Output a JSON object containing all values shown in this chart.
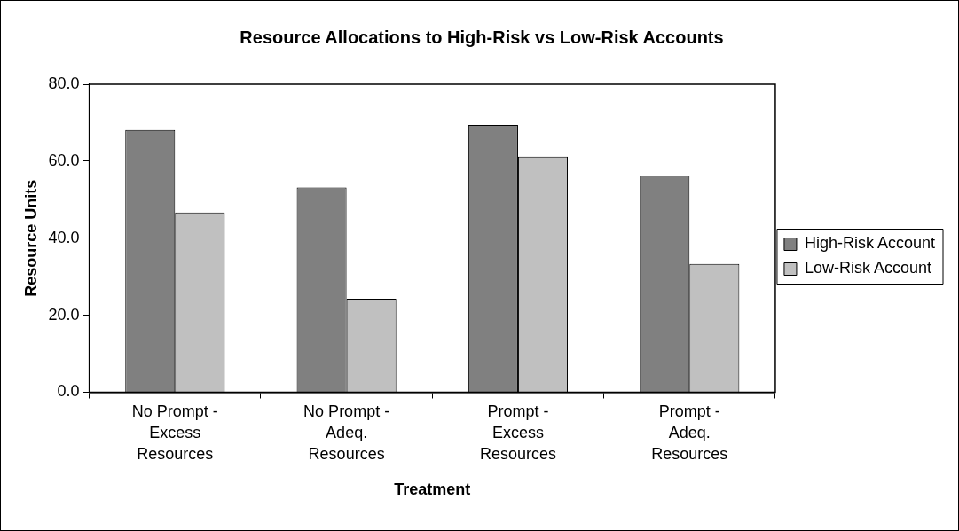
{
  "chart_data": {
    "type": "bar",
    "title": "Resource Allocations to High-Risk vs Low-Risk Accounts",
    "xlabel": "Treatment",
    "ylabel": "Resource Units",
    "categories": [
      "No Prompt - Excess Resources",
      "No Prompt - Adeq. Resources",
      "Prompt - Excess Resources",
      "Prompt - Adeq. Resources"
    ],
    "series": [
      {
        "name": "High-Risk Account",
        "color": "#808080",
        "values": [
          68.1,
          53.2,
          69.4,
          56.3
        ]
      },
      {
        "name": "Low-Risk Account",
        "color": "#c0c0c0",
        "values": [
          46.7,
          24.3,
          61.2,
          33.3
        ]
      }
    ],
    "ylim": [
      0,
      80
    ],
    "yticks": [
      {
        "value": 0,
        "label": "0.0"
      },
      {
        "value": 20,
        "label": "20.0"
      },
      {
        "value": 40,
        "label": "40.0"
      },
      {
        "value": 60,
        "label": "60.0"
      },
      {
        "value": 80,
        "label": "80.0"
      }
    ],
    "grid": false,
    "legend": "right"
  }
}
